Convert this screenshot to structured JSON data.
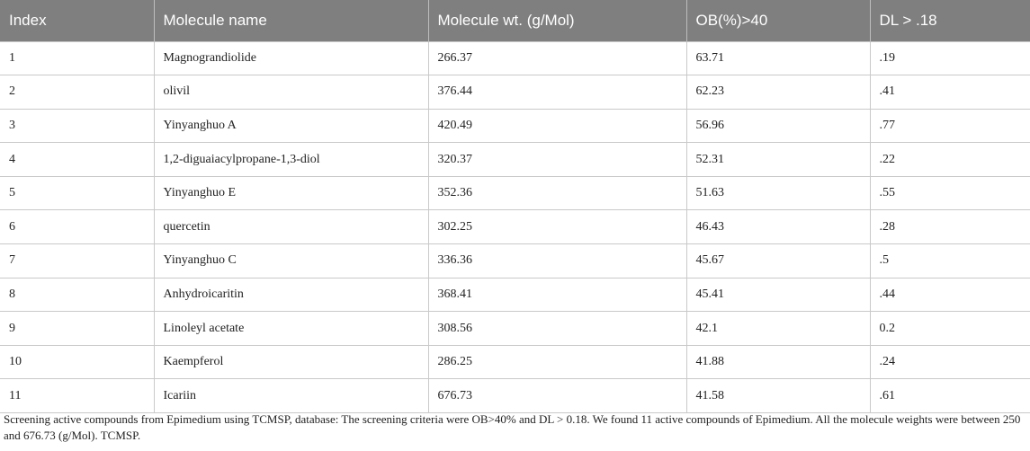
{
  "table": {
    "headers": [
      "Index",
      "Molecule name",
      "Molecule wt. (g/Mol)",
      "OB(%)>40",
      "DL > .18"
    ],
    "rows": [
      [
        "1",
        "Magnograndiolide",
        "266.37",
        "63.71",
        ".19"
      ],
      [
        "2",
        "olivil",
        "376.44",
        "62.23",
        ".41"
      ],
      [
        "3",
        "Yinyanghuo A",
        "420.49",
        "56.96",
        ".77"
      ],
      [
        "4",
        "1,2-diguaiacylpropane-1,3-diol",
        "320.37",
        "52.31",
        ".22"
      ],
      [
        "5",
        "Yinyanghuo E",
        "352.36",
        "51.63",
        ".55"
      ],
      [
        "6",
        "quercetin",
        "302.25",
        "46.43",
        ".28"
      ],
      [
        "7",
        "Yinyanghuo C",
        "336.36",
        "45.67",
        ".5"
      ],
      [
        "8",
        "Anhydroicaritin",
        "368.41",
        "45.41",
        ".44"
      ],
      [
        "9",
        "Linoleyl acetate",
        "308.56",
        "42.1",
        "0.2"
      ],
      [
        "10",
        "Kaempferol",
        "286.25",
        "41.88",
        ".24"
      ],
      [
        "11",
        "Icariin",
        "676.73",
        "41.58",
        ".61"
      ]
    ]
  },
  "footnote": "Screening active compounds from Epimedium using TCMSP, database: The screening criteria were OB>40% and DL > 0.18. We found 11 active compounds of Epimedium. All the molecule weights were between 250 and 676.73 (g/Mol). TCMSP.",
  "colors": {
    "header_bg": "#7f7f7f",
    "header_text": "#ffffff",
    "grid": "#c9c9c9"
  }
}
